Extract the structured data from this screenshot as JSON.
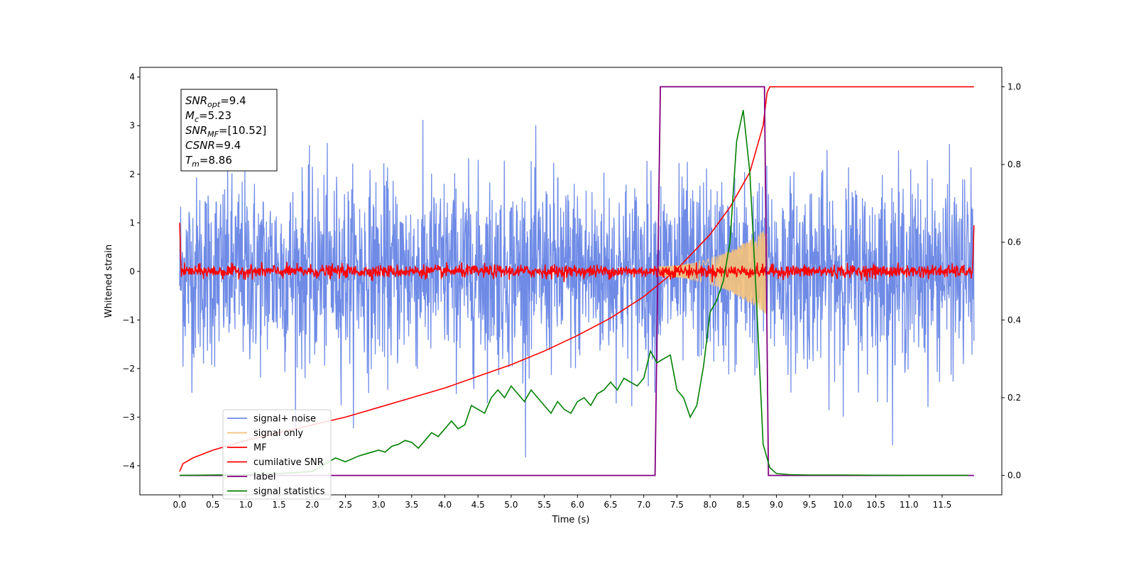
{
  "chart_data": {
    "type": "line",
    "xlabel": "Time (s)",
    "ylabel": "Whitened strain",
    "xlim": [
      -0.6,
      12.4
    ],
    "ylim": [
      -4.6,
      4.2
    ],
    "y2lim": [
      -0.05,
      1.05
    ],
    "x_ticks": [
      0.0,
      0.5,
      1.0,
      1.5,
      2.0,
      2.5,
      3.0,
      3.5,
      4.0,
      4.5,
      5.0,
      5.5,
      6.0,
      6.5,
      7.0,
      7.5,
      8.0,
      8.5,
      9.0,
      9.5,
      10.0,
      10.5,
      11.0,
      11.5
    ],
    "x_tick_labels": [
      "0.0",
      "0.5",
      "1.0",
      "1.5",
      "2.0",
      "2.5",
      "3.0",
      "3.5",
      "4.0",
      "4.5",
      "5.0",
      "5.5",
      "6.0",
      "6.5",
      "7.0",
      "7.5",
      "8.0",
      "8.5",
      "9.0",
      "9.5",
      "10.0",
      "10.5",
      "11.0",
      "11.5"
    ],
    "y_ticks": [
      4,
      3,
      2,
      1,
      0,
      -1,
      -2,
      -3,
      -4
    ],
    "y_tick_labels": [
      "4",
      "3",
      "2",
      "1",
      "0",
      "−1",
      "−2",
      "−3",
      "−4"
    ],
    "y2_ticks": [
      1.0,
      0.8,
      0.6,
      0.4,
      0.2,
      0.0
    ],
    "y2_tick_labels": [
      "1.0",
      "0.8",
      "0.6",
      "0.4",
      "0.2",
      "0.0"
    ],
    "grid": false,
    "legend_position": "lower-left",
    "annotation": {
      "lines": [
        {
          "base": "SNR",
          "sub": "opt",
          "value": "=9.4"
        },
        {
          "base": "M",
          "sub": "c",
          "value": "=5.23"
        },
        {
          "base": "SNR",
          "sub": "MF",
          "value": "=[10.52]"
        },
        {
          "base": "CSNR",
          "sub": "",
          "value": "=9.4"
        },
        {
          "base": "T",
          "sub": "m",
          "value": "=8.86"
        }
      ]
    },
    "series": [
      {
        "name": "signal+ noise",
        "axis": "left",
        "color": "#6f8be6",
        "kind": "noise",
        "x_start": 0.0,
        "x_end": 11.98,
        "amplitude_typical": 1.0,
        "min": -4.15,
        "max": 3.82
      },
      {
        "name": "signal only",
        "axis": "left",
        "color": "#f5c27a",
        "kind": "chirp",
        "x_start": 7.2,
        "x_end": 8.86,
        "peak_amplitude": 0.9
      },
      {
        "name": "MF",
        "axis": "left",
        "color": "#ff0000",
        "kind": "mf",
        "x_start": 0.0,
        "x_end": 11.98,
        "amplitude_typical": 0.12,
        "edge_value": 1.0
      },
      {
        "name": "cumilative SNR",
        "axis": "right",
        "color": "#ff0000",
        "x": [
          0.0,
          0.05,
          0.2,
          0.5,
          1.0,
          1.5,
          2.0,
          2.5,
          3.0,
          3.5,
          4.0,
          4.5,
          5.0,
          5.5,
          6.0,
          6.5,
          7.0,
          7.5,
          8.0,
          8.3,
          8.6,
          8.8,
          8.86,
          8.9,
          11.98
        ],
        "y": [
          0.01,
          0.03,
          0.045,
          0.065,
          0.09,
          0.11,
          0.13,
          0.15,
          0.175,
          0.2,
          0.225,
          0.255,
          0.285,
          0.32,
          0.36,
          0.405,
          0.46,
          0.53,
          0.62,
          0.69,
          0.78,
          0.9,
          0.985,
          1.0,
          1.0
        ]
      },
      {
        "name": "label",
        "axis": "right",
        "color": "#800080",
        "x": [
          0.0,
          7.17,
          7.25,
          8.82,
          8.88,
          11.98
        ],
        "y": [
          0.0,
          0.0,
          1.0,
          1.0,
          0.0,
          0.0
        ]
      },
      {
        "name": "signal statistics",
        "axis": "right",
        "color": "#008000",
        "x": [
          0.0,
          0.5,
          1.0,
          1.5,
          2.0,
          2.2,
          2.35,
          2.5,
          2.7,
          2.9,
          3.0,
          3.1,
          3.2,
          3.3,
          3.4,
          3.5,
          3.6,
          3.7,
          3.8,
          3.9,
          4.0,
          4.1,
          4.2,
          4.3,
          4.4,
          4.5,
          4.6,
          4.7,
          4.8,
          4.9,
          5.0,
          5.1,
          5.2,
          5.3,
          5.4,
          5.5,
          5.6,
          5.7,
          5.8,
          5.9,
          6.0,
          6.1,
          6.2,
          6.3,
          6.4,
          6.5,
          6.6,
          6.7,
          6.8,
          6.9,
          7.0,
          7.1,
          7.2,
          7.3,
          7.4,
          7.5,
          7.6,
          7.7,
          7.8,
          7.9,
          8.0,
          8.1,
          8.2,
          8.3,
          8.4,
          8.5,
          8.6,
          8.7,
          8.8,
          8.9,
          9.0,
          9.2,
          9.5,
          10.0,
          11.0,
          11.9
        ],
        "y": [
          0.0,
          0.001,
          0.002,
          0.005,
          0.01,
          0.03,
          0.045,
          0.035,
          0.05,
          0.06,
          0.065,
          0.06,
          0.075,
          0.08,
          0.09,
          0.085,
          0.07,
          0.09,
          0.11,
          0.1,
          0.12,
          0.14,
          0.12,
          0.13,
          0.18,
          0.17,
          0.16,
          0.2,
          0.22,
          0.2,
          0.23,
          0.21,
          0.19,
          0.22,
          0.2,
          0.18,
          0.16,
          0.19,
          0.17,
          0.16,
          0.19,
          0.2,
          0.18,
          0.21,
          0.22,
          0.24,
          0.22,
          0.25,
          0.24,
          0.23,
          0.25,
          0.32,
          0.29,
          0.3,
          0.31,
          0.22,
          0.2,
          0.15,
          0.18,
          0.28,
          0.42,
          0.45,
          0.5,
          0.6,
          0.86,
          0.94,
          0.78,
          0.45,
          0.08,
          0.02,
          0.005,
          0.002,
          0.001,
          0.001,
          0.0,
          0.0
        ]
      }
    ]
  }
}
